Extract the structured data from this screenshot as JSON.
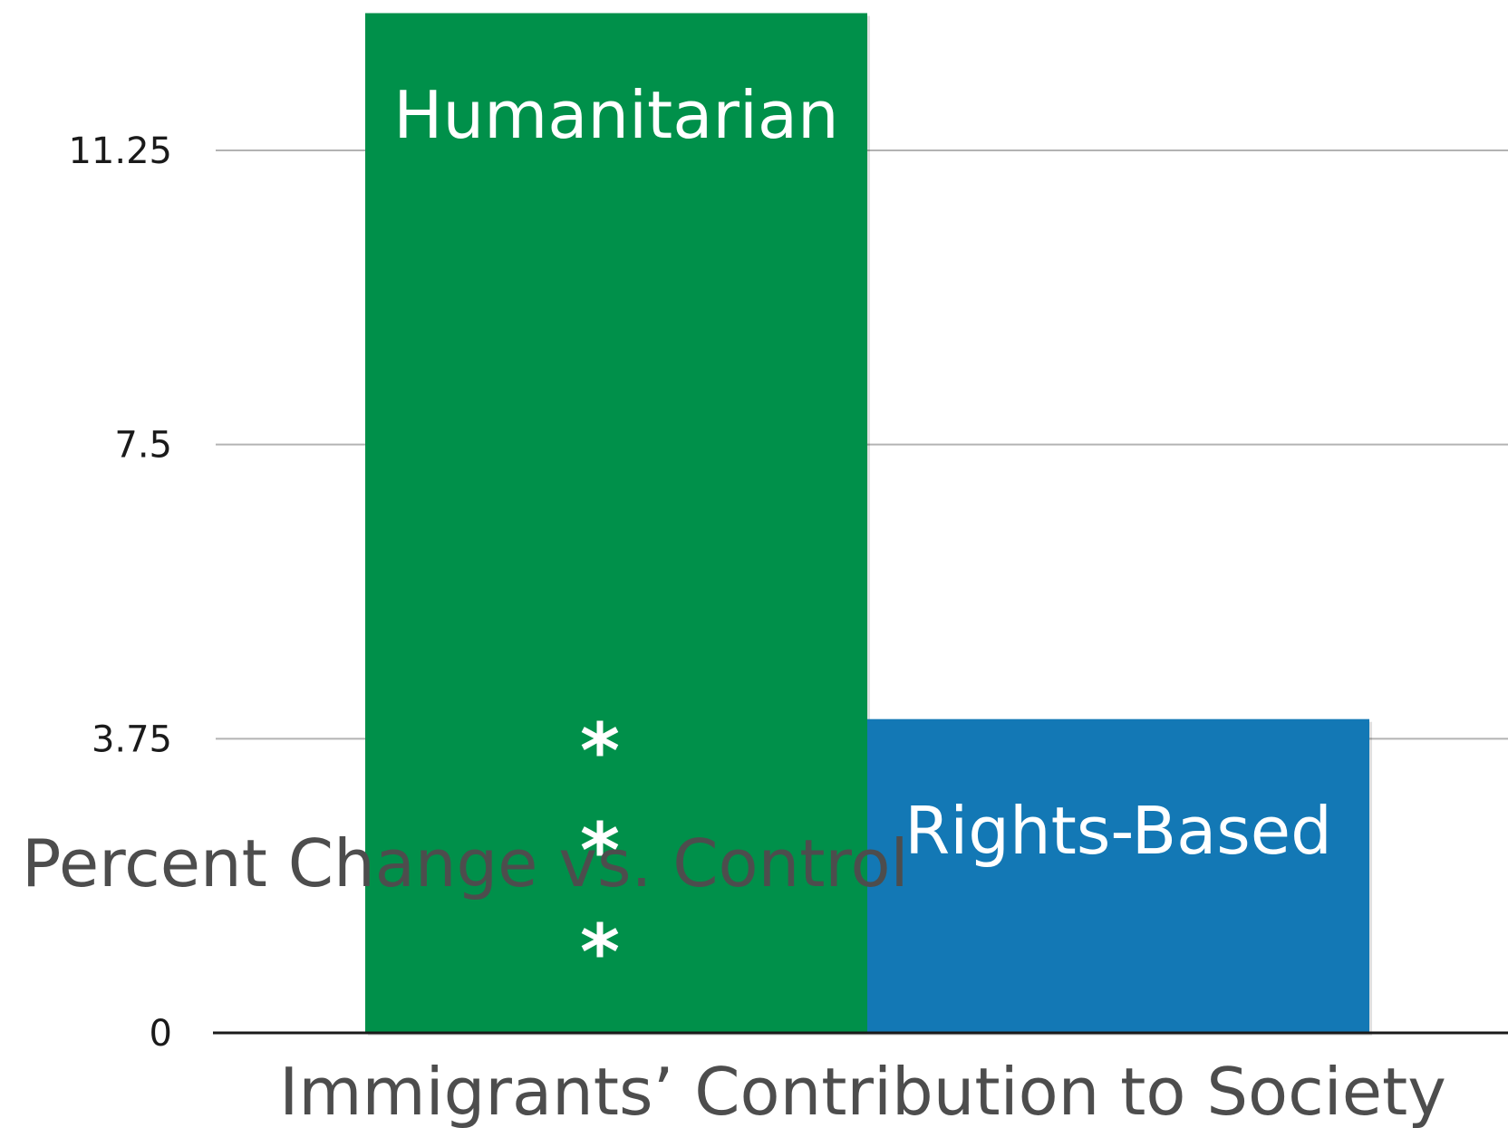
{
  "chart_data": {
    "type": "bar",
    "categories": [
      "Humanitarian",
      "Rights-Based"
    ],
    "values": [
      13,
      4
    ],
    "colors": [
      "#00904A",
      "#1378B5"
    ],
    "ylabel": "Percent Change vs. Control",
    "xlabel": "Immigrants’ Contribution to Society",
    "yticks": [
      "0",
      "3.75",
      "7.5",
      "11.25"
    ],
    "ylim": [
      0,
      13
    ],
    "grid": true,
    "annotations": [
      "*",
      "*",
      "*"
    ]
  }
}
